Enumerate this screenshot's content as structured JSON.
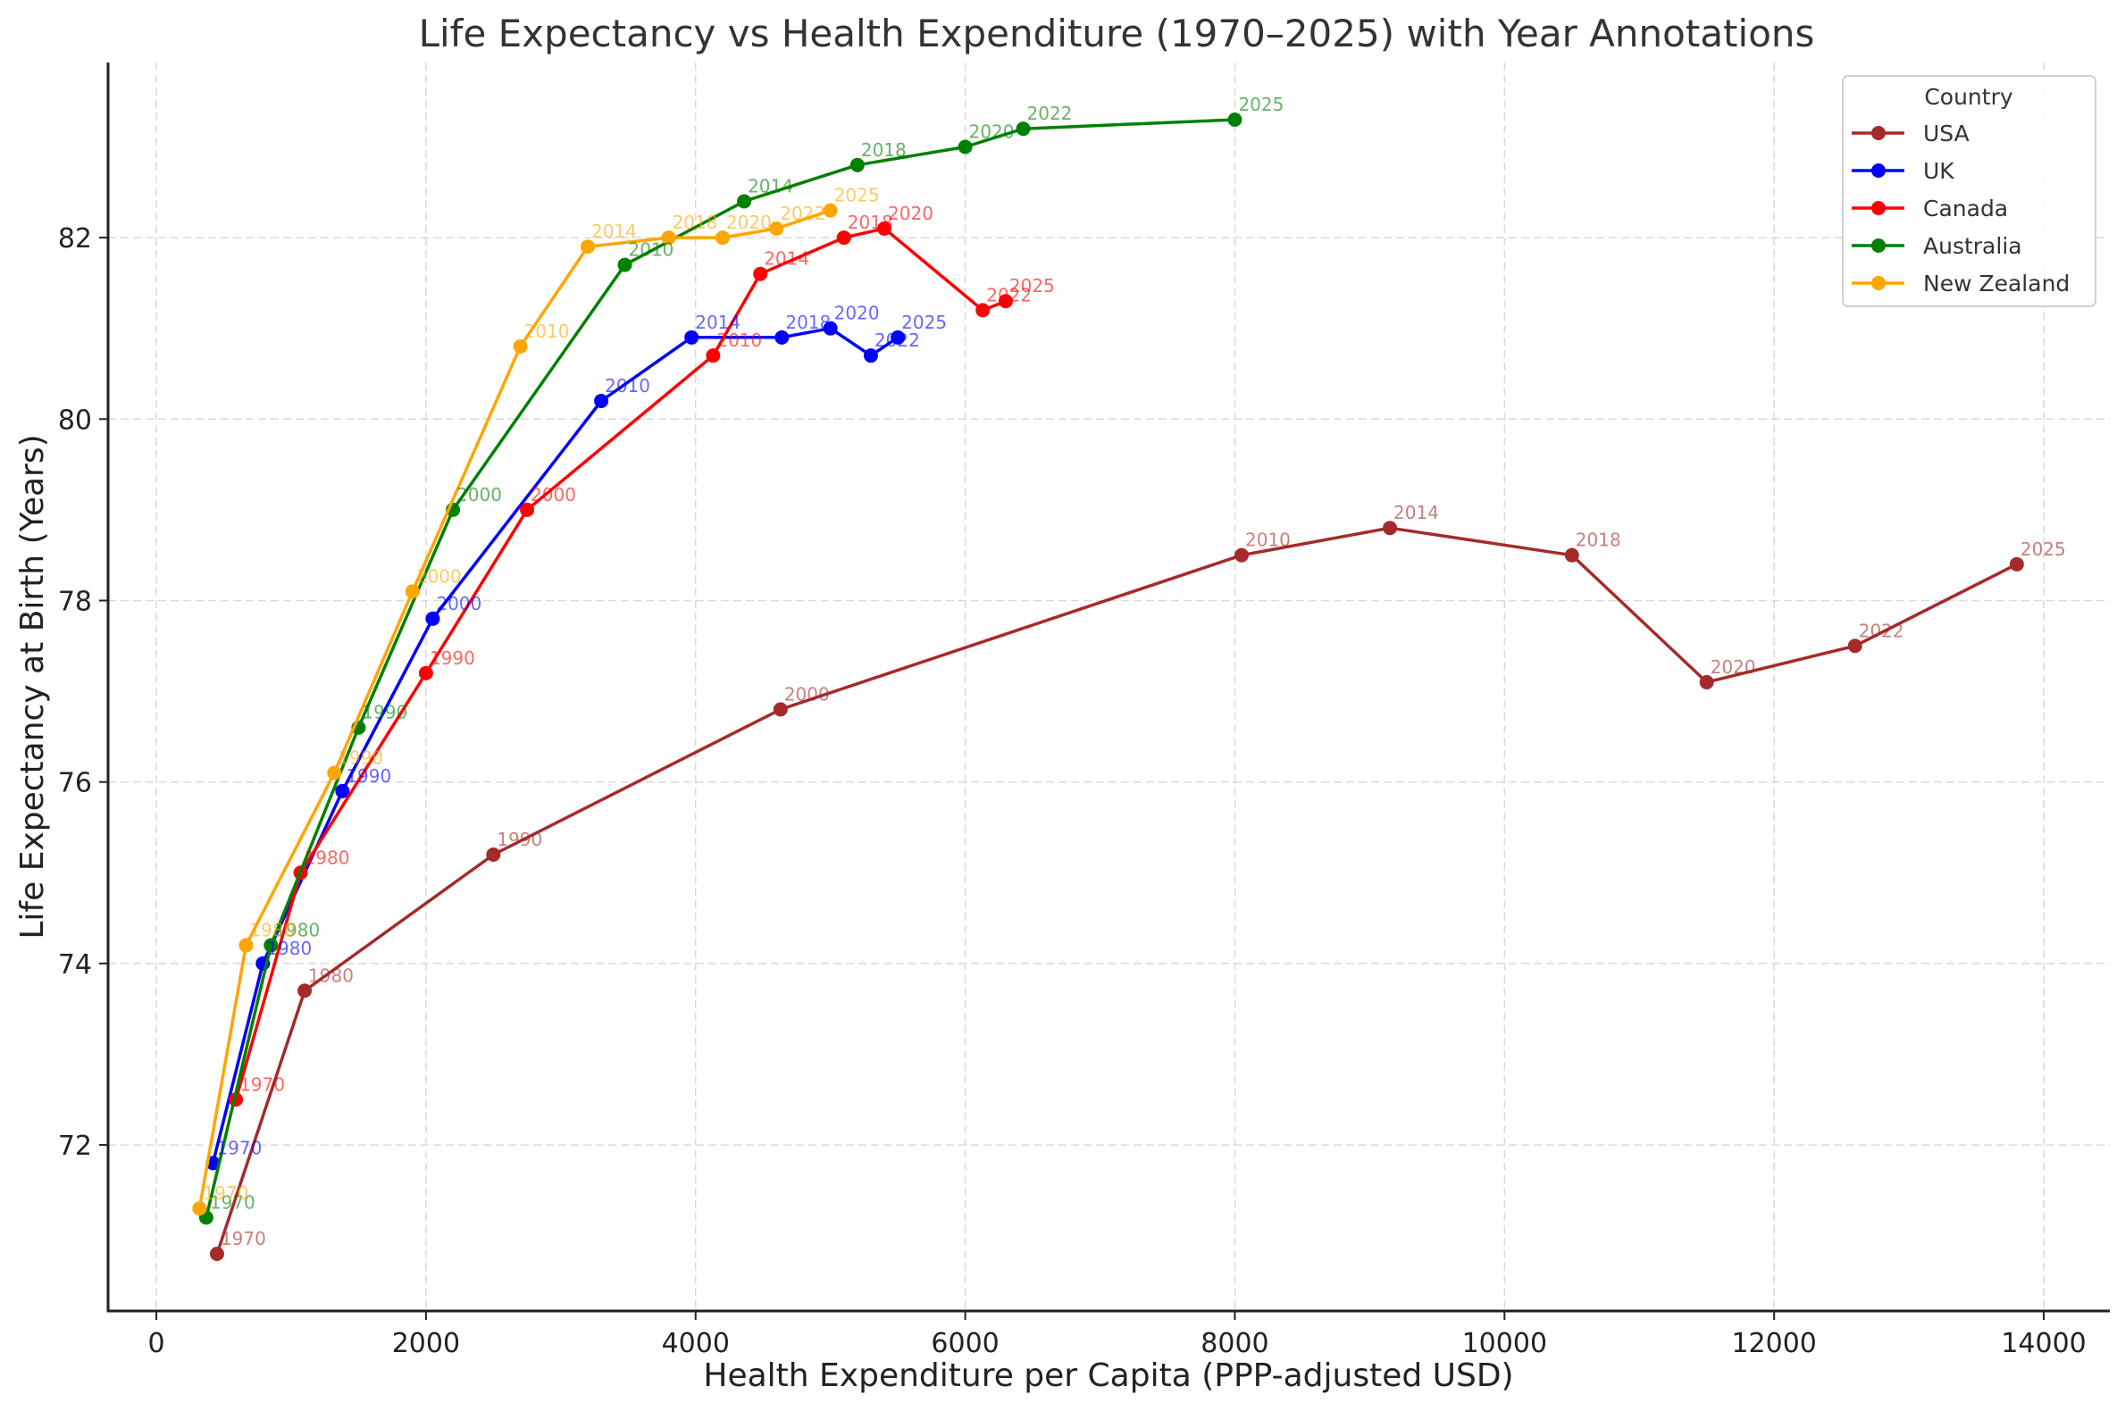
{
  "chart_data": {
    "type": "line",
    "title": "Life Expectancy vs Health Expenditure (1970–2025) with Year Annotations",
    "xlabel": "Health Expenditure per Capita (PPP-adjusted USD)",
    "ylabel": "Life Expectancy at Birth (Years)",
    "xlim": [
      -358,
      14490
    ],
    "ylim": [
      70.17,
      83.93
    ],
    "xticks": [
      0,
      2000,
      4000,
      6000,
      8000,
      10000,
      12000,
      14000
    ],
    "yticks": [
      72,
      74,
      76,
      78,
      80,
      82
    ],
    "grid": true,
    "legend": {
      "title": "Country",
      "placement": "top-right"
    },
    "series": [
      {
        "name": "USA",
        "color": "#a52a2a",
        "points": [
          {
            "year": "1970",
            "x": 450,
            "y": 70.8
          },
          {
            "year": "1980",
            "x": 1100,
            "y": 73.7
          },
          {
            "year": "1990",
            "x": 2500,
            "y": 75.2
          },
          {
            "year": "2000",
            "x": 4630,
            "y": 76.8
          },
          {
            "year": "2010",
            "x": 8050,
            "y": 78.5
          },
          {
            "year": "2014",
            "x": 9150,
            "y": 78.8
          },
          {
            "year": "2018",
            "x": 10500,
            "y": 78.5
          },
          {
            "year": "2020",
            "x": 11500,
            "y": 77.1
          },
          {
            "year": "2022",
            "x": 12600,
            "y": 77.5
          },
          {
            "year": "2025",
            "x": 13800,
            "y": 78.4
          }
        ]
      },
      {
        "name": "UK",
        "color": "#0000ff",
        "points": [
          {
            "year": "1970",
            "x": 420,
            "y": 71.8
          },
          {
            "year": "1980",
            "x": 790,
            "y": 74.0
          },
          {
            "year": "1990",
            "x": 1380,
            "y": 75.9
          },
          {
            "year": "2000",
            "x": 2050,
            "y": 77.8
          },
          {
            "year": "2010",
            "x": 3300,
            "y": 80.2
          },
          {
            "year": "2014",
            "x": 3970,
            "y": 80.9
          },
          {
            "year": "2018",
            "x": 4640,
            "y": 80.9
          },
          {
            "year": "2020",
            "x": 5000,
            "y": 81.0
          },
          {
            "year": "2022",
            "x": 5300,
            "y": 80.7
          },
          {
            "year": "2025",
            "x": 5500,
            "y": 80.9
          }
        ]
      },
      {
        "name": "Canada",
        "color": "#ff0000",
        "points": [
          {
            "year": "1970",
            "x": 590,
            "y": 72.5
          },
          {
            "year": "1980",
            "x": 1070,
            "y": 75.0
          },
          {
            "year": "1990",
            "x": 2000,
            "y": 77.2
          },
          {
            "year": "2000",
            "x": 2750,
            "y": 79.0
          },
          {
            "year": "2010",
            "x": 4130,
            "y": 80.7
          },
          {
            "year": "2014",
            "x": 4480,
            "y": 81.6
          },
          {
            "year": "2018",
            "x": 5100,
            "y": 82.0
          },
          {
            "year": "2020",
            "x": 5400,
            "y": 82.1
          },
          {
            "year": "2022",
            "x": 6130,
            "y": 81.2
          },
          {
            "year": "2025",
            "x": 6300,
            "y": 81.3
          }
        ]
      },
      {
        "name": "Australia",
        "color": "#008000",
        "points": [
          {
            "year": "1970",
            "x": 370,
            "y": 71.2
          },
          {
            "year": "1980",
            "x": 850,
            "y": 74.2
          },
          {
            "year": "1990",
            "x": 1500,
            "y": 76.6
          },
          {
            "year": "2000",
            "x": 2200,
            "y": 79.0
          },
          {
            "year": "2010",
            "x": 3475,
            "y": 81.7
          },
          {
            "year": "2014",
            "x": 4360,
            "y": 82.4
          },
          {
            "year": "2018",
            "x": 5200,
            "y": 82.8
          },
          {
            "year": "2020",
            "x": 6000,
            "y": 83.0
          },
          {
            "year": "2022",
            "x": 6430,
            "y": 83.2
          },
          {
            "year": "2025",
            "x": 8000,
            "y": 83.3
          }
        ]
      },
      {
        "name": "New Zealand",
        "color": "#ffa500",
        "points": [
          {
            "year": "1970",
            "x": 320,
            "y": 71.3
          },
          {
            "year": "1980",
            "x": 665,
            "y": 74.2
          },
          {
            "year": "1990",
            "x": 1320,
            "y": 76.1
          },
          {
            "year": "2000",
            "x": 1900,
            "y": 78.1
          },
          {
            "year": "2010",
            "x": 2700,
            "y": 80.8
          },
          {
            "year": "2014",
            "x": 3200,
            "y": 81.9
          },
          {
            "year": "2018",
            "x": 3800,
            "y": 82.0
          },
          {
            "year": "2020",
            "x": 4200,
            "y": 82.0
          },
          {
            "year": "2022",
            "x": 4600,
            "y": 82.1
          },
          {
            "year": "2025",
            "x": 5000,
            "y": 82.3
          }
        ]
      }
    ]
  }
}
